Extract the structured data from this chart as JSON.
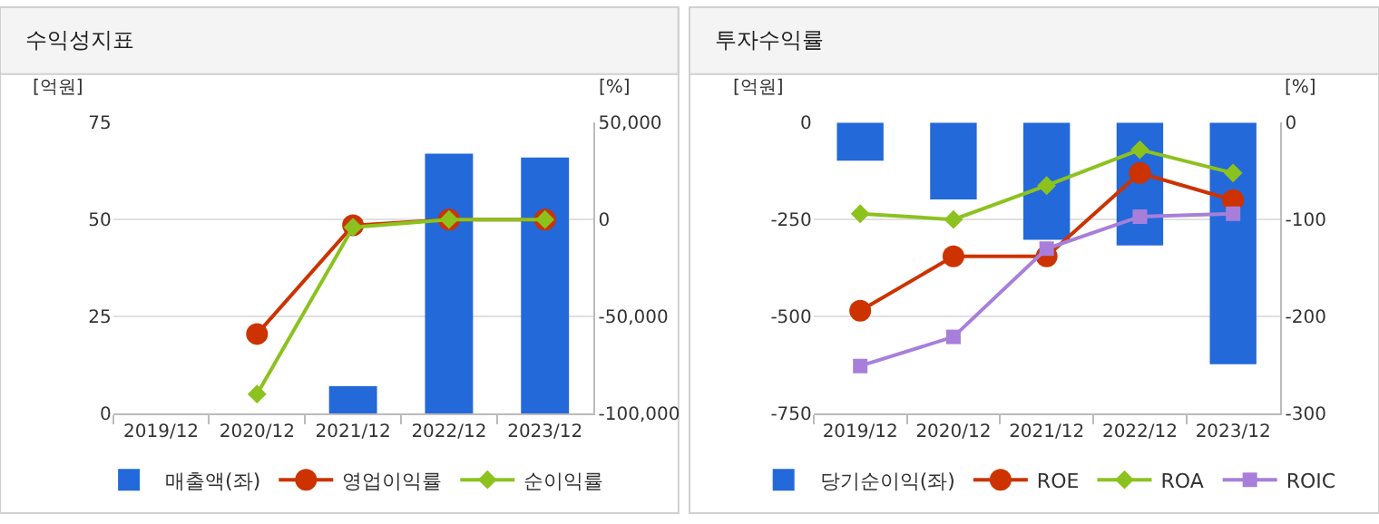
{
  "chart_data": [
    {
      "type": "bar",
      "title": "수익성지표",
      "ylabel": "[억원]",
      "y2label": "[%]",
      "categories": [
        "2019/12",
        "2020/12",
        "2021/12",
        "2022/12",
        "2023/12"
      ],
      "series": [
        {
          "name": "매출액(좌)",
          "color": "#2369d9",
          "values": [
            null,
            null,
            7,
            67,
            66
          ]
        },
        {
          "name": "영업이익률",
          "type": "line",
          "axis": "y2",
          "color": "#cc3300",
          "marker": "circle",
          "values": [
            null,
            -59000,
            -3000,
            0,
            0
          ]
        },
        {
          "name": "순이익률",
          "type": "line",
          "axis": "y2",
          "color": "#8cc21e",
          "marker": "diamond",
          "values": [
            null,
            -90000,
            -4000,
            0,
            0
          ]
        }
      ],
      "ylim": [
        0,
        75
      ],
      "yticks": [
        0,
        25,
        50,
        75
      ],
      "y2lim": [
        -100000,
        50000
      ],
      "y2ticks": [
        {
          "value": -100000,
          "label": "-100,000"
        },
        {
          "value": -50000,
          "label": "-50,000"
        },
        0,
        {
          "value": 50000,
          "label": "50,000"
        }
      ],
      "grid": "y",
      "legend": "bottom"
    },
    {
      "type": "bar",
      "title": "투자수익률",
      "ylabel": "[억원]",
      "y2label": "[%]",
      "categories": [
        "2019/12",
        "2020/12",
        "2021/12",
        "2022/12",
        "2023/12"
      ],
      "series": [
        {
          "name": "당기순이익(좌)",
          "color": "#2369d9",
          "values": [
            -98,
            -198,
            -302,
            -317,
            -623
          ]
        },
        {
          "name": "ROE",
          "type": "line",
          "axis": "y2",
          "color": "#cc3300",
          "marker": "circle",
          "values": [
            -194,
            -138,
            -138,
            -52,
            -80
          ]
        },
        {
          "name": "ROA",
          "type": "line",
          "axis": "y2",
          "color": "#8cc21e",
          "marker": "diamond",
          "values": [
            -94,
            -100,
            -65,
            -28,
            -52
          ]
        },
        {
          "name": "ROIC",
          "type": "line",
          "axis": "y2",
          "color": "#a77fdb",
          "marker": "square",
          "values": [
            -251,
            -221,
            -130,
            -97,
            -94
          ]
        }
      ],
      "ylim": [
        -750,
        0
      ],
      "yticks": [
        -750,
        -500,
        -250,
        0
      ],
      "y2lim": [
        -300,
        0
      ],
      "y2ticks": [
        -300,
        -200,
        -100,
        0
      ],
      "grid": "y",
      "legend": "bottom"
    }
  ]
}
